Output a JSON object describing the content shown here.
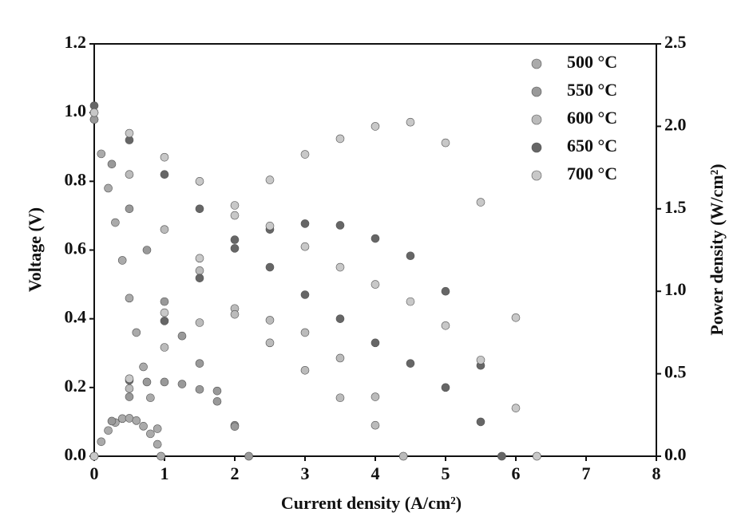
{
  "chart_data": {
    "type": "scatter",
    "x_label": "Current density (A/cm²)",
    "y_label": "Voltage (V)",
    "y2_label": "Power density (W/cm²)",
    "xlim": [
      0,
      8
    ],
    "xticks": [
      0,
      1,
      2,
      3,
      4,
      5,
      6,
      7,
      8
    ],
    "ylim": [
      0,
      1.2
    ],
    "yticks": [
      {
        "value": 0,
        "label": "0.0"
      },
      0.2,
      0.4,
      0.6,
      0.8,
      {
        "value": 1,
        "label": "1.0"
      },
      1.2
    ],
    "y2lim": [
      0,
      2.5
    ],
    "y2ticks": [
      {
        "value": 0,
        "label": "0.0"
      },
      0.5,
      {
        "value": 1,
        "label": "1.0"
      },
      1.5,
      {
        "value": 2,
        "label": "2.0"
      },
      2.5
    ],
    "legend": "upper right",
    "series": [
      {
        "name": "500 °C",
        "color": "#aaaaaa",
        "x": [
          0,
          0.1,
          0.2,
          0.3,
          0.4,
          0.5,
          0.6,
          0.7,
          0.8,
          0.9,
          0.95
        ],
        "values": [
          0.98,
          0.88,
          0.78,
          0.68,
          0.57,
          0.46,
          0.36,
          0.26,
          0.17,
          0.08,
          0
        ],
        "power": [
          0,
          0.088,
          0.156,
          0.204,
          0.228,
          0.23,
          0.216,
          0.182,
          0.136,
          0.072,
          0
        ]
      },
      {
        "name": "550 °C",
        "color": "#999999",
        "x": [
          0,
          0.25,
          0.5,
          0.75,
          1,
          1.25,
          1.5,
          1.75,
          2,
          2.2
        ],
        "values": [
          0.98,
          0.85,
          0.72,
          0.6,
          0.45,
          0.35,
          0.27,
          0.19,
          0.09,
          0
        ],
        "power": [
          0,
          0.213,
          0.36,
          0.45,
          0.45,
          0.4375,
          0.405,
          0.3325,
          0.18,
          0
        ]
      },
      {
        "name": "600 °C",
        "color": "#bbbbbb",
        "x": [
          0,
          0.5,
          1,
          1.5,
          2,
          2.5,
          3,
          3.5,
          4,
          4.4
        ],
        "values": [
          1.0,
          0.82,
          0.66,
          0.54,
          0.43,
          0.33,
          0.25,
          0.17,
          0.09,
          0
        ],
        "power": [
          0,
          0.41,
          0.66,
          0.81,
          0.86,
          0.825,
          0.75,
          0.595,
          0.36,
          0
        ]
      },
      {
        "name": "650 °C",
        "color": "#666666",
        "x": [
          0,
          0.5,
          1,
          1.5,
          2,
          2.5,
          3,
          3.5,
          4,
          4.5,
          5,
          5.5,
          5.8
        ],
        "values": [
          1.02,
          0.92,
          0.82,
          0.72,
          0.63,
          0.55,
          0.47,
          0.4,
          0.33,
          0.27,
          0.2,
          0.1,
          0
        ],
        "power": [
          0,
          0.46,
          0.82,
          1.08,
          1.26,
          1.375,
          1.41,
          1.4,
          1.32,
          1.215,
          1.0,
          0.55,
          0
        ]
      },
      {
        "name": "700 °C",
        "color": "#c8c8c8",
        "x": [
          0,
          0.5,
          1,
          1.5,
          2,
          2.5,
          3,
          3.5,
          4,
          4.5,
          5,
          5.5,
          6,
          6.3
        ],
        "values": [
          1.0,
          0.94,
          0.87,
          0.8,
          0.73,
          0.67,
          0.61,
          0.55,
          0.5,
          0.45,
          0.38,
          0.28,
          0.14,
          0
        ],
        "power": [
          0,
          0.47,
          0.87,
          1.2,
          1.46,
          1.675,
          1.83,
          1.925,
          2.0,
          2.025,
          1.9,
          1.54,
          0.84,
          0
        ]
      }
    ]
  }
}
